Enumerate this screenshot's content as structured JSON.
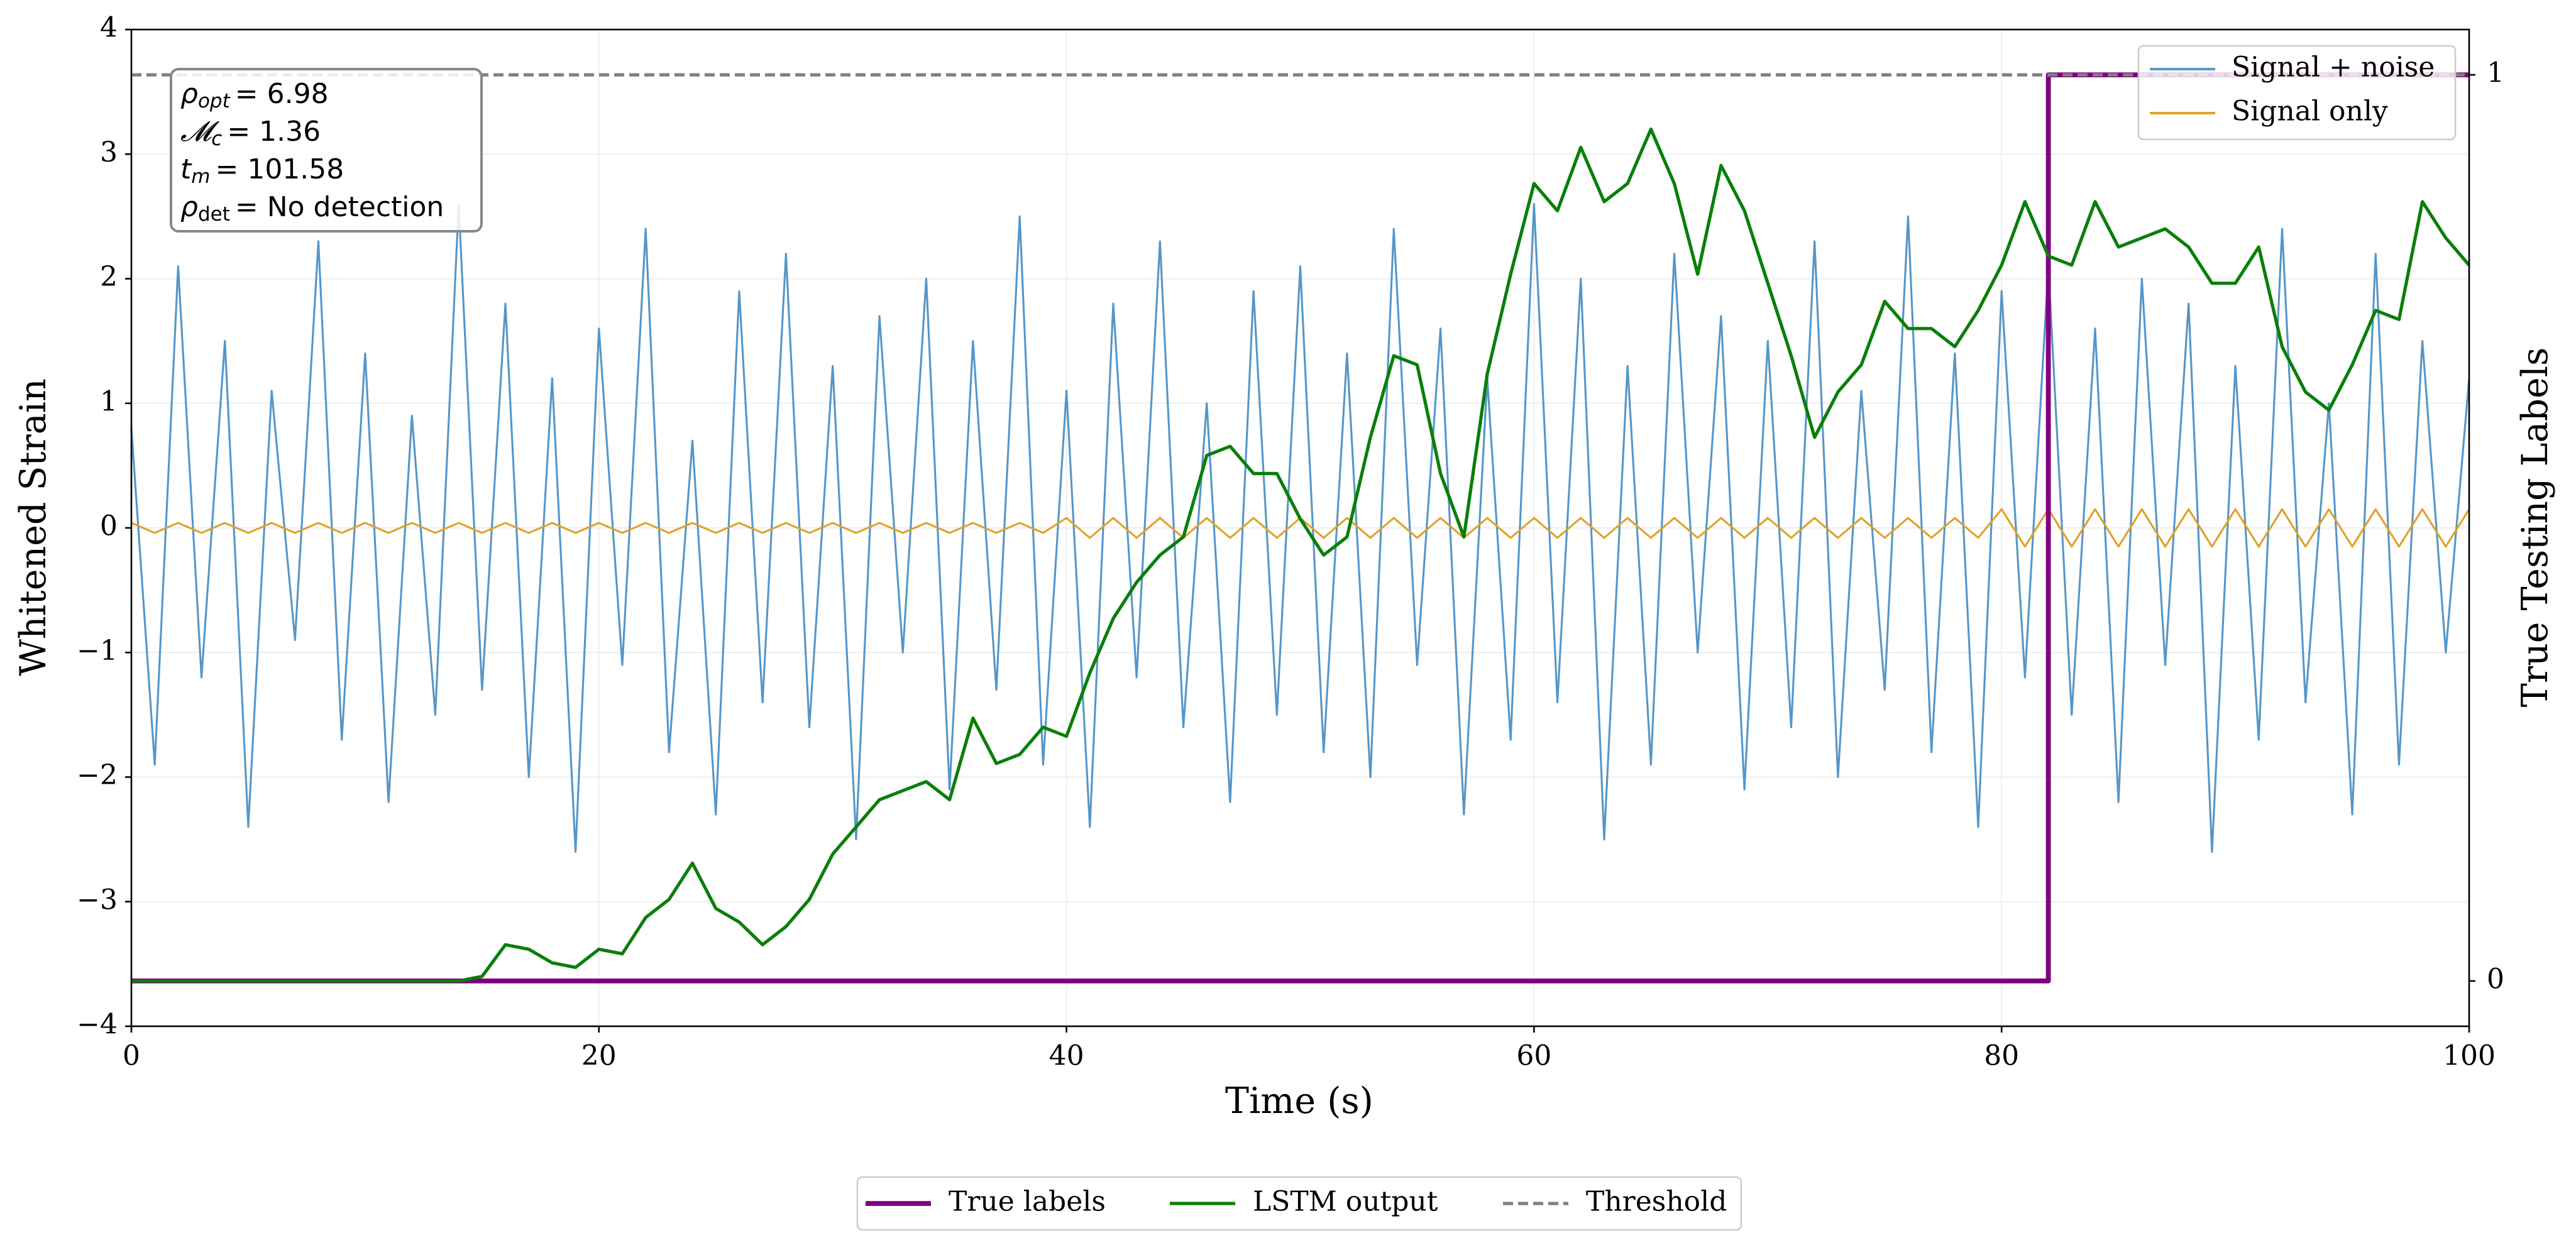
{
  "chart_data": {
    "type": "line",
    "xlabel": "Time (s)",
    "ylabel": "Whitened Strain",
    "y2label": "True Testing Labels",
    "xlim": [
      0,
      100
    ],
    "xticks": [
      0,
      20,
      40,
      60,
      80,
      100
    ],
    "ylim": [
      -4,
      4
    ],
    "yticks": [
      {
        "value": -4,
        "label": "−4"
      },
      {
        "value": -3,
        "label": "−3"
      },
      {
        "value": -2,
        "label": "−2"
      },
      {
        "value": -1,
        "label": "−1"
      },
      0,
      1,
      2,
      3,
      4
    ],
    "y2lim": [
      -0.05,
      1.05
    ],
    "y2ticks": [
      0,
      1
    ],
    "grid": true,
    "x": [
      0,
      1,
      2,
      3,
      4,
      5,
      6,
      7,
      8,
      9,
      10,
      11,
      12,
      13,
      14,
      15,
      16,
      17,
      18,
      19,
      20,
      21,
      22,
      23,
      24,
      25,
      26,
      27,
      28,
      29,
      30,
      31,
      32,
      33,
      34,
      35,
      36,
      37,
      38,
      39,
      40,
      41,
      42,
      43,
      44,
      45,
      46,
      47,
      48,
      49,
      50,
      51,
      52,
      53,
      54,
      55,
      56,
      57,
      58,
      59,
      60,
      61,
      62,
      63,
      64,
      65,
      66,
      67,
      68,
      69,
      70,
      71,
      72,
      73,
      74,
      75,
      76,
      77,
      78,
      79,
      80,
      81,
      82,
      83,
      84,
      85,
      86,
      87,
      88,
      89,
      90,
      91,
      92,
      93,
      94,
      95,
      96,
      97,
      98,
      99,
      100
    ],
    "series": [
      {
        "name": "Signal + noise",
        "color": "#5596c8",
        "axis": "y",
        "legend": "upper-right",
        "values": [
          0.8,
          -1.9,
          2.1,
          -1.2,
          1.5,
          -2.4,
          1.1,
          -0.9,
          2.3,
          -1.7,
          1.4,
          -2.2,
          0.9,
          -1.5,
          2.6,
          -1.3,
          1.8,
          -2.0,
          1.2,
          -2.6,
          1.6,
          -1.1,
          2.4,
          -1.8,
          0.7,
          -2.3,
          1.9,
          -1.4,
          2.2,
          -1.6,
          1.3,
          -2.5,
          1.7,
          -1.0,
          2.0,
          -2.1,
          1.5,
          -1.3,
          2.5,
          -1.9,
          1.1,
          -2.4,
          1.8,
          -1.2,
          2.3,
          -1.6,
          1.0,
          -2.2,
          1.9,
          -1.5,
          2.1,
          -1.8,
          1.4,
          -2.0,
          2.4,
          -1.1,
          1.6,
          -2.3,
          1.2,
          -1.7,
          2.6,
          -1.4,
          2.0,
          -2.5,
          1.3,
          -1.9,
          2.2,
          -1.0,
          1.7,
          -2.1,
          1.5,
          -1.6,
          2.3,
          -2.0,
          1.1,
          -1.3,
          2.5,
          -1.8,
          1.4,
          -2.4,
          1.9,
          -1.2,
          2.1,
          -1.5,
          1.6,
          -2.2,
          2.0,
          -1.1,
          1.8,
          -2.6,
          1.3,
          -1.7,
          2.4,
          -1.4,
          1.0,
          -2.3,
          2.2,
          -1.9,
          1.5,
          -1.0,
          1.2
        ]
      },
      {
        "name": "Signal only",
        "color": "#e0a22a",
        "axis": "y",
        "legend": "upper-right",
        "values": [
          0.04,
          -0.04,
          0.04,
          -0.04,
          0.04,
          -0.04,
          0.04,
          -0.04,
          0.04,
          -0.04,
          0.04,
          -0.04,
          0.04,
          -0.04,
          0.04,
          -0.04,
          0.04,
          -0.04,
          0.04,
          -0.04,
          0.04,
          -0.04,
          0.04,
          -0.04,
          0.04,
          -0.04,
          0.04,
          -0.04,
          0.04,
          -0.04,
          0.04,
          -0.04,
          0.04,
          -0.04,
          0.04,
          -0.04,
          0.04,
          -0.04,
          0.04,
          -0.04,
          0.08,
          -0.08,
          0.08,
          -0.08,
          0.08,
          -0.08,
          0.08,
          -0.08,
          0.08,
          -0.08,
          0.08,
          -0.08,
          0.08,
          -0.08,
          0.08,
          -0.08,
          0.08,
          -0.08,
          0.08,
          -0.08,
          0.08,
          -0.08,
          0.08,
          -0.08,
          0.08,
          -0.08,
          0.08,
          -0.08,
          0.08,
          -0.08,
          0.08,
          -0.08,
          0.08,
          -0.08,
          0.08,
          -0.08,
          0.08,
          -0.08,
          0.08,
          -0.08,
          0.15,
          -0.15,
          0.15,
          -0.15,
          0.15,
          -0.15,
          0.15,
          -0.15,
          0.15,
          -0.15,
          0.15,
          -0.15,
          0.15,
          -0.15,
          0.15,
          -0.15,
          0.15,
          -0.15,
          0.15,
          -0.15,
          0.15
        ]
      },
      {
        "name": "True labels",
        "color": "#800080",
        "axis": "y2",
        "legend": "bottom",
        "width": 3,
        "x": [
          0,
          82,
          82,
          100
        ],
        "values": [
          0,
          0,
          1,
          1
        ]
      },
      {
        "name": "LSTM output",
        "color": "#0a7f0a",
        "axis": "y2",
        "legend": "bottom",
        "width": 2,
        "values": [
          0,
          0,
          0,
          0,
          0,
          0,
          0,
          0,
          0,
          0,
          0,
          0,
          0,
          0,
          0,
          0.005,
          0.04,
          0.035,
          0.02,
          0.015,
          0.035,
          0.03,
          0.07,
          0.09,
          0.13,
          0.08,
          0.065,
          0.04,
          0.06,
          0.09,
          0.14,
          0.17,
          0.2,
          0.21,
          0.22,
          0.2,
          0.29,
          0.24,
          0.25,
          0.28,
          0.27,
          0.34,
          0.4,
          0.44,
          0.47,
          0.49,
          0.58,
          0.59,
          0.56,
          0.56,
          0.51,
          0.47,
          0.49,
          0.6,
          0.69,
          0.68,
          0.56,
          0.49,
          0.67,
          0.78,
          0.88,
          0.85,
          0.92,
          0.86,
          0.88,
          0.94,
          0.88,
          0.78,
          0.9,
          0.85,
          0.77,
          0.69,
          0.6,
          0.65,
          0.68,
          0.75,
          0.72,
          0.72,
          0.7,
          0.74,
          0.79,
          0.86,
          0.8,
          0.79,
          0.86,
          0.81,
          0.82,
          0.83,
          0.81,
          0.77,
          0.77,
          0.81,
          0.7,
          0.65,
          0.63,
          0.68,
          0.74,
          0.73,
          0.86,
          0.82,
          0.79
        ]
      },
      {
        "name": "Threshold",
        "color": "#808080",
        "axis": "y2",
        "legend": "bottom",
        "dashed": true,
        "width": 2,
        "x": [
          0,
          100
        ],
        "values": [
          1,
          1
        ]
      }
    ],
    "annotation": [
      {
        "base": "ρ",
        "sub": "opt",
        "text": "= 6.98"
      },
      {
        "base": "𝓜",
        "sub": "c",
        "text": "= 1.36"
      },
      {
        "base": "t",
        "sub": "m",
        "text": "= 101.58"
      },
      {
        "base": "ρ",
        "sub": "det",
        "text": "= No detection"
      }
    ]
  }
}
